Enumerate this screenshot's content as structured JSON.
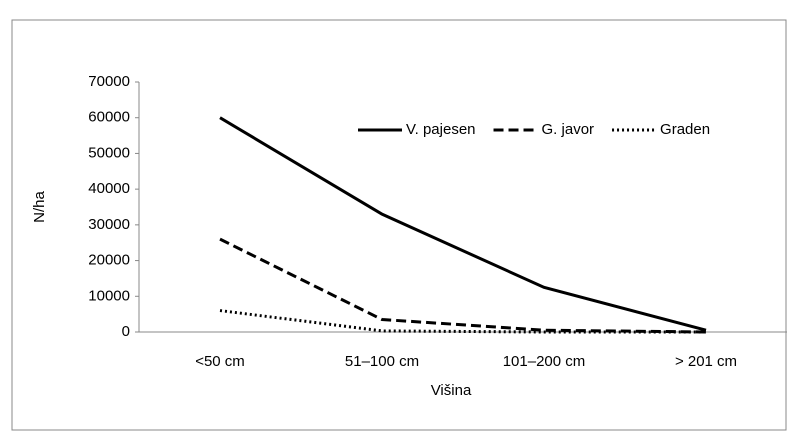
{
  "chart_data": {
    "type": "line",
    "categories": [
      "<50 cm",
      "51–100 cm",
      "101–200 cm",
      "> 201 cm"
    ],
    "series": [
      {
        "name": "V. pajesen",
        "color": "#000000",
        "dash": "solid",
        "values": [
          60000,
          33000,
          12500,
          500
        ]
      },
      {
        "name": "G. javor",
        "color": "#000000",
        "dash": "dashed",
        "values": [
          26000,
          3500,
          500,
          0
        ]
      },
      {
        "name": "Graden",
        "color": "#000000",
        "dash": "dotted",
        "values": [
          6000,
          300,
          0,
          0
        ]
      }
    ],
    "xlabel": "Višina",
    "ylabel": "N/ha",
    "ylim": [
      0,
      70000
    ],
    "yticks": [
      0,
      10000,
      20000,
      30000,
      40000,
      50000,
      60000,
      70000
    ],
    "grid": false,
    "legend": "upper right"
  }
}
